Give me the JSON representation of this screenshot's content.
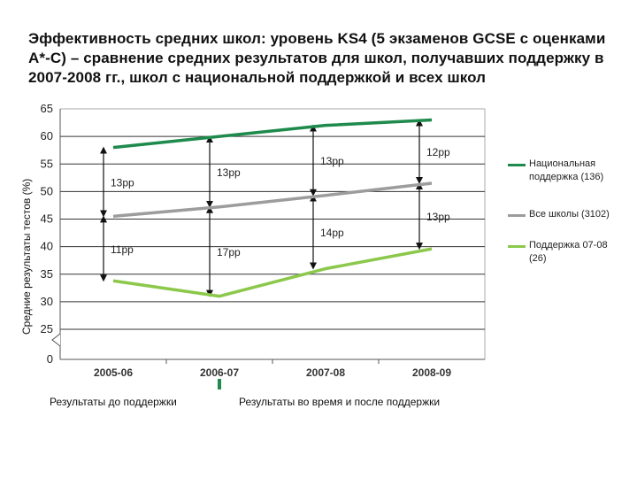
{
  "title": "Эффективность средних школ: уровень KS4 (5 экзаменов GCSE с оценками A*-C) – сравнение средних результатов для школ, получавших поддержку в 2007-2008 гг., школ с национальной поддержкой и всех школ",
  "period_labels": {
    "before": "Результаты до поддержки",
    "after": "Результаты во время и после поддержки"
  },
  "colors": {
    "national": "#1e8a4c",
    "all_schools": "#9c9c9c",
    "support": "#8cc84b",
    "grid": "#333333",
    "arrow": "#111111",
    "period_marker": "#1e8a4c"
  },
  "chart_data": {
    "type": "line",
    "title": "",
    "xlabel": "",
    "ylabel": "Средние результаты тестов (%)",
    "categories": [
      "2005-06",
      "2006-07",
      "2007-08",
      "2008-09"
    ],
    "y_ticks": [
      "0",
      "25",
      "30",
      "35",
      "40",
      "45",
      "50",
      "55",
      "60",
      "65"
    ],
    "axis_break": true,
    "ylim": [
      25,
      65
    ],
    "grid": true,
    "legend_position": "right",
    "series": [
      {
        "name": "Национальная поддержка (136)",
        "key": "national",
        "values": [
          58,
          60,
          62,
          63
        ]
      },
      {
        "name": "Все школы (3102)",
        "key": "all_schools",
        "values": [
          45.5,
          47.2,
          49.3,
          51.5
        ]
      },
      {
        "name": "Поддержка 07-08 (26)",
        "key": "support",
        "values": [
          33.8,
          31,
          36,
          39.6
        ]
      }
    ],
    "gap_annotations": [
      {
        "category": "2005-06",
        "from": "national",
        "to": "all_schools",
        "label": "13pp"
      },
      {
        "category": "2005-06",
        "from": "all_schools",
        "to": "support",
        "label": "11pp"
      },
      {
        "category": "2006-07",
        "from": "national",
        "to": "all_schools",
        "label": "13pp"
      },
      {
        "category": "2006-07",
        "from": "all_schools",
        "to": "support",
        "label": "17pp"
      },
      {
        "category": "2007-08",
        "from": "national",
        "to": "all_schools",
        "label": "13pp"
      },
      {
        "category": "2007-08",
        "from": "all_schools",
        "to": "support",
        "label": "14pp"
      },
      {
        "category": "2008-09",
        "from": "national",
        "to": "all_schools",
        "label": "12pp"
      },
      {
        "category": "2008-09",
        "from": "all_schools",
        "to": "support",
        "label": "13pp"
      }
    ]
  }
}
